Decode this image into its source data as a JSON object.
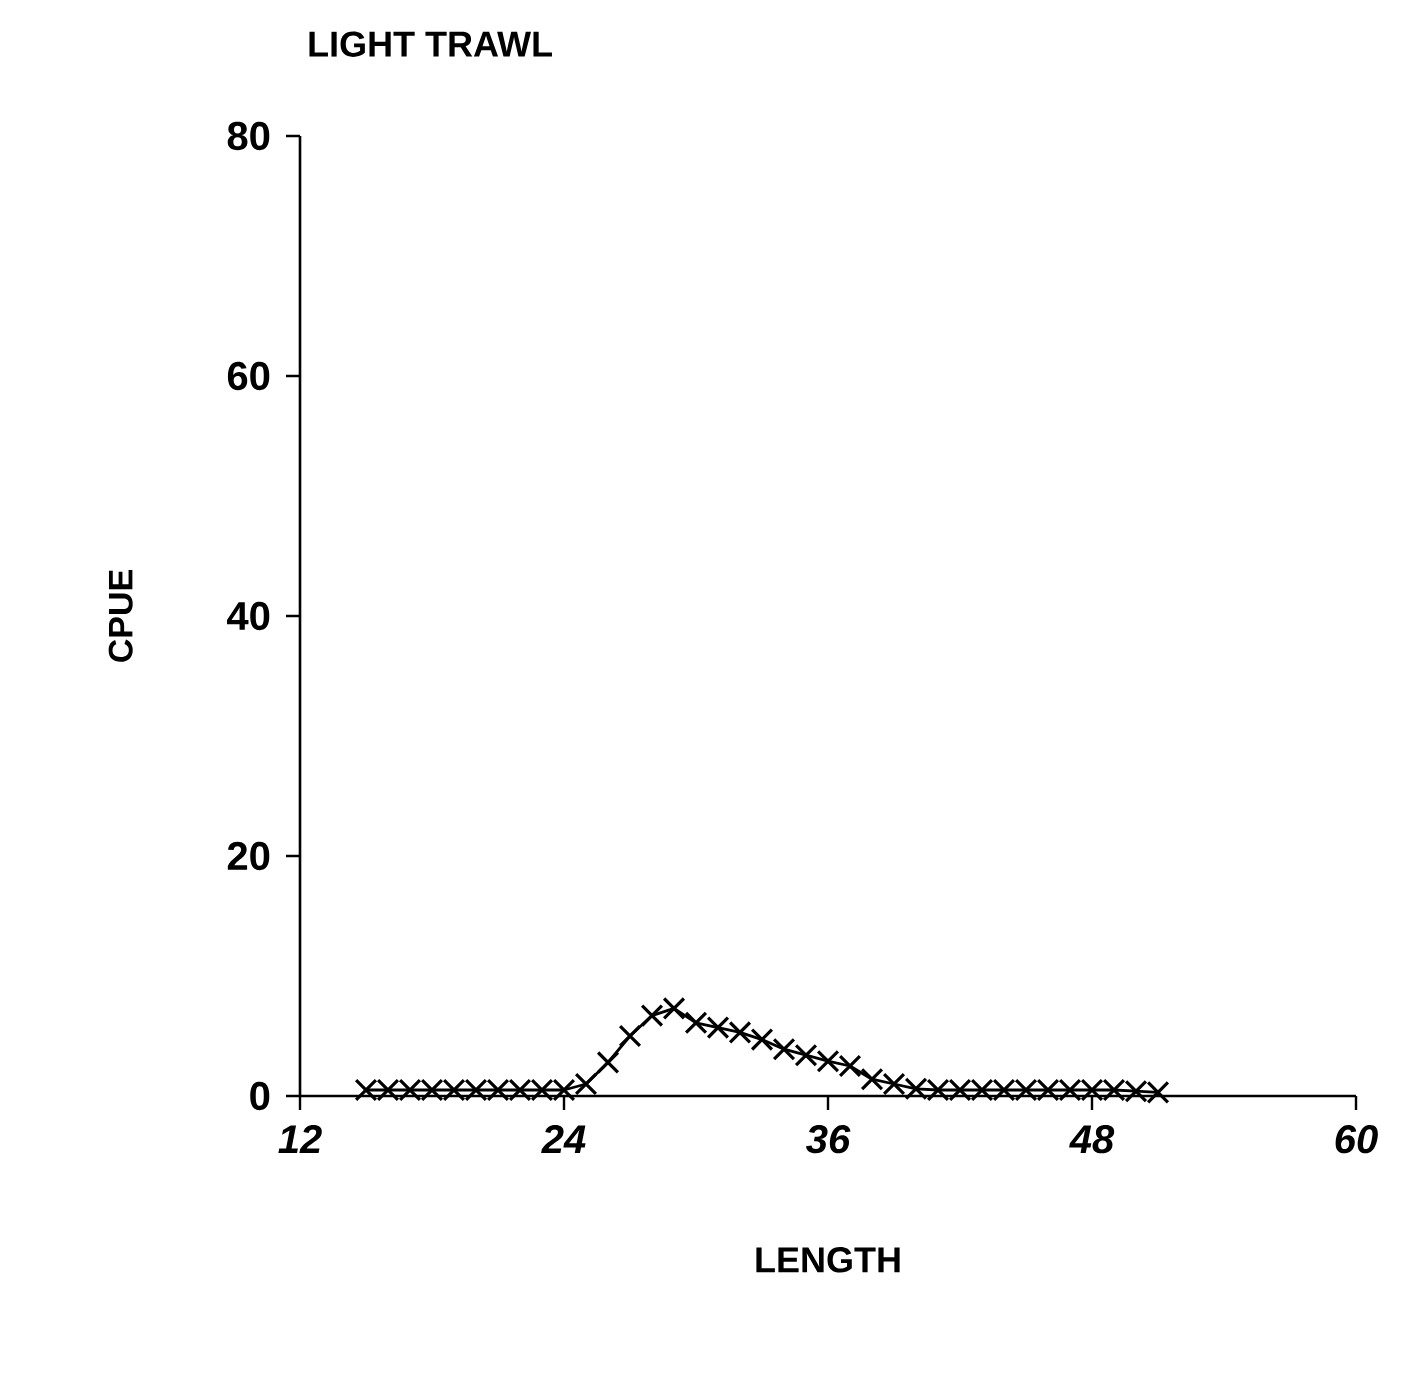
{
  "chart_data": {
    "type": "line",
    "title": "LIGHT TRAWL",
    "xlabel": "LENGTH",
    "ylabel": "CPUE",
    "x": [
      15,
      16,
      17,
      18,
      19,
      20,
      21,
      22,
      23,
      24,
      25,
      26,
      27,
      28,
      29,
      30,
      31,
      32,
      33,
      34,
      35,
      36,
      37,
      38,
      39,
      40,
      41,
      42,
      43,
      44,
      45,
      46,
      47,
      48,
      49,
      50,
      51
    ],
    "series": [
      {
        "color": "#000000",
        "values": [
          0.5,
          0.5,
          0.5,
          0.5,
          0.5,
          0.5,
          0.5,
          0.5,
          0.5,
          0.5,
          1,
          2.8,
          5,
          6.7,
          7.3,
          6.1,
          5.7,
          5.3,
          4.7,
          3.9,
          3.4,
          2.9,
          2.5,
          1.4,
          1,
          0.6,
          0.5,
          0.5,
          0.5,
          0.5,
          0.5,
          0.5,
          0.5,
          0.5,
          0.5,
          0.4,
          0.3
        ]
      }
    ],
    "xlim": [
      12,
      60
    ],
    "ylim": [
      0,
      80
    ],
    "xticks": [
      12,
      24,
      36,
      48,
      60
    ],
    "yticks": [
      0,
      20,
      40,
      60,
      80
    ],
    "grid": false,
    "marker": "cross",
    "line_style": "solid"
  }
}
